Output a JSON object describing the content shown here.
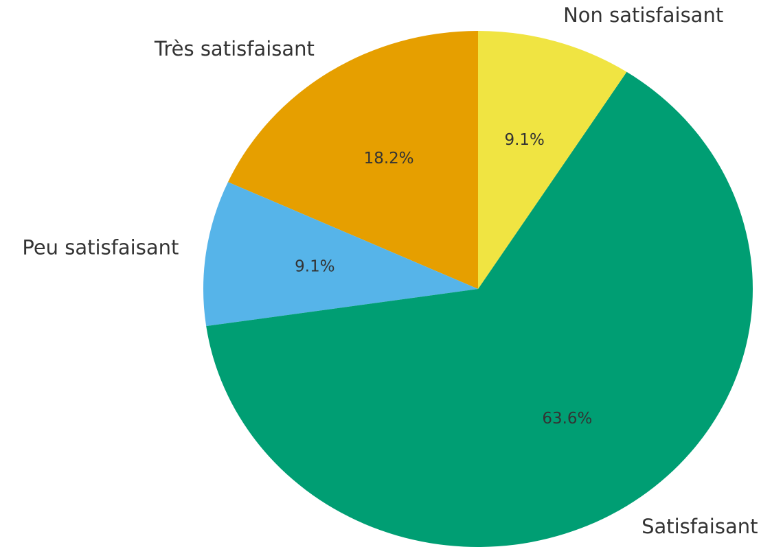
{
  "chart_data": {
    "type": "pie",
    "categories": [
      "Très satisfaisant",
      "Peu satisfaisant",
      "Satisfaisant",
      "Non satisfaisant"
    ],
    "values": [
      18.2,
      9.1,
      63.6,
      9.1
    ],
    "value_labels": [
      "18.2%",
      "9.1%",
      "63.6%",
      "9.1%"
    ],
    "colors": [
      "#E69F00",
      "#56B4E9",
      "#009E73",
      "#F0E442"
    ],
    "start_angle": 90,
    "counterclock": true
  }
}
